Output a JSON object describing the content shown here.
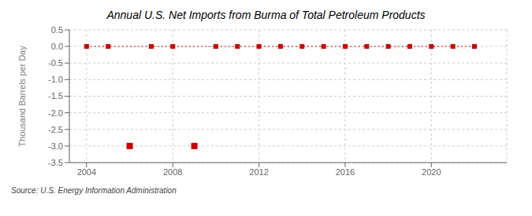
{
  "chart_data": {
    "type": "line",
    "title": "Annual U.S. Net Imports from Burma of Total Petroleum Products",
    "ylabel": "Thousand Barrels per Day",
    "source": "Source: U.S. Energy Information Administration",
    "series": [
      {
        "type": "line",
        "color": "#cc0000",
        "line_style": "dotted",
        "marker": "square",
        "x": [
          2004,
          2005,
          2007,
          2008,
          2010,
          2011,
          2012,
          2013,
          2014,
          2015,
          2016,
          2017,
          2018,
          2019,
          2020,
          2021,
          2022
        ],
        "values": [
          0,
          0,
          0,
          0,
          0,
          0,
          0,
          0,
          0,
          0,
          0,
          0,
          0,
          0,
          0,
          0,
          0
        ]
      },
      {
        "type": "scatter",
        "color": "#cc0000",
        "marker": "square",
        "x": [
          2006,
          2009
        ],
        "values": [
          -3.0,
          -3.0
        ]
      }
    ],
    "xlim": [
      2003.2,
      2023.5
    ],
    "xticks": [
      2004,
      2008,
      2012,
      2016,
      2020
    ],
    "ylim": [
      -3.5,
      0.5
    ],
    "yticks": [
      0.5,
      {
        "value": 0,
        "label": "0.0"
      },
      -0.5,
      {
        "value": -1,
        "label": "-1.0"
      },
      -1.5,
      {
        "value": -2,
        "label": "-2.0"
      },
      -2.5,
      {
        "value": -3,
        "label": "-3.0"
      },
      -3.5
    ],
    "grid": true
  }
}
